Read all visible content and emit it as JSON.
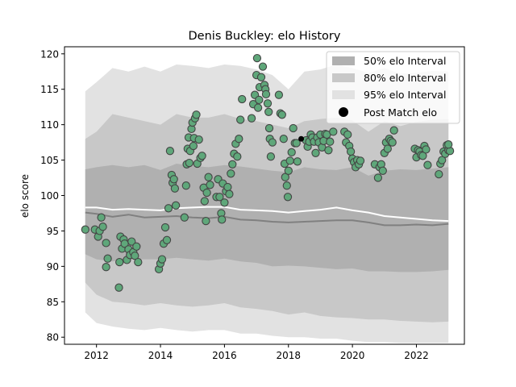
{
  "chart_data": {
    "type": "scatter",
    "title": "Denis Buckley: elo History",
    "xlabel": "",
    "ylabel": "elo score",
    "xlim": [
      2011.0,
      2023.5
    ],
    "ylim": [
      79.0,
      121.0
    ],
    "xticks": [
      2012,
      2014,
      2016,
      2018,
      2020,
      2022
    ],
    "yticks": [
      80,
      85,
      90,
      95,
      100,
      105,
      110,
      115,
      120
    ],
    "grid": false,
    "legend": {
      "placement": "top-right",
      "entries": [
        "50% elo Interval",
        "80% elo Interval",
        "95% elo Interval",
        "Post Match elo"
      ]
    },
    "colors": {
      "band50": "#b0b0b0",
      "band80": "#c8c8c8",
      "band95": "#e2e2e2",
      "points_fill": "#5fa77a",
      "points_edge": "#444444",
      "mean_line": "#808080",
      "median_line": "#ffffff",
      "highlight_point": "#000000"
    },
    "bands": {
      "x": [
        2011.65,
        2012.0,
        2012.5,
        2013.0,
        2013.5,
        2014.0,
        2014.5,
        2015.0,
        2015.5,
        2016.0,
        2016.5,
        2017.0,
        2017.5,
        2018.0,
        2018.5,
        2019.0,
        2019.5,
        2020.0,
        2020.5,
        2021.0,
        2021.5,
        2022.0,
        2022.5,
        2023.0
      ],
      "p95_upper": [
        114.7,
        116.0,
        118.0,
        117.5,
        118.2,
        117.5,
        118.5,
        118.3,
        118.0,
        118.5,
        118.3,
        117.8,
        117.0,
        115.0,
        117.5,
        117.8,
        118.5,
        118.0,
        117.3,
        118.0,
        117.2,
        117.3,
        117.6,
        117.5
      ],
      "p80_upper": [
        108.0,
        109.0,
        111.5,
        111.0,
        110.5,
        110.0,
        111.5,
        111.0,
        111.0,
        111.5,
        110.8,
        110.5,
        110.0,
        109.5,
        110.5,
        110.8,
        111.0,
        110.6,
        109.0,
        110.5,
        109.8,
        110.4,
        110.7,
        110.8
      ],
      "p50_upper": [
        103.7,
        104.0,
        104.3,
        104.0,
        104.3,
        103.6,
        104.5,
        104.2,
        104.0,
        104.3,
        104.1,
        103.8,
        103.5,
        103.3,
        104.0,
        103.7,
        103.6,
        104.0,
        102.8,
        103.5,
        103.7,
        103.6,
        103.8,
        104.0
      ],
      "p50_lower": [
        91.7,
        91.0,
        90.7,
        91.0,
        91.0,
        91.0,
        91.2,
        91.0,
        90.8,
        91.1,
        90.7,
        90.5,
        90.0,
        90.1,
        90.0,
        89.8,
        89.6,
        89.7,
        89.3,
        89.3,
        89.2,
        89.2,
        89.3,
        89.5
      ],
      "p80_lower": [
        87.7,
        86.0,
        85.0,
        84.8,
        84.5,
        84.8,
        84.5,
        84.3,
        84.5,
        84.8,
        84.2,
        84.0,
        83.7,
        83.2,
        83.5,
        83.0,
        82.8,
        82.7,
        82.5,
        82.5,
        82.3,
        82.2,
        82.1,
        82.2
      ],
      "p95_lower": [
        83.5,
        82.0,
        81.5,
        81.2,
        81.0,
        81.3,
        81.0,
        80.8,
        81.0,
        81.0,
        80.5,
        80.5,
        80.2,
        80.0,
        80.0,
        79.8,
        79.8,
        79.5,
        79.3,
        79.3,
        79.2,
        79.2,
        79.2,
        79.2
      ]
    },
    "lines": [
      {
        "x": [
          2011.65,
          2012.0,
          2012.5,
          2013.0,
          2013.5,
          2014.0,
          2014.5,
          2015.0,
          2015.5,
          2016.0,
          2016.5,
          2017.0,
          2017.5,
          2018.0,
          2018.5,
          2019.0,
          2019.5,
          2020.0,
          2020.5,
          2021.0,
          2021.5,
          2022.0,
          2022.5,
          2023.0
        ],
        "y": [
          97.6,
          97.4,
          97.0,
          97.3,
          96.9,
          97.0,
          97.1,
          96.9,
          96.8,
          97.0,
          96.6,
          96.5,
          96.3,
          96.2,
          96.3,
          96.4,
          96.5,
          96.5,
          96.2,
          95.8,
          95.8,
          95.9,
          95.8,
          96.0
        ]
      },
      {
        "x": [
          2011.65,
          2012.0,
          2012.5,
          2013.0,
          2013.5,
          2014.0,
          2014.5,
          2015.0,
          2015.5,
          2016.0,
          2016.5,
          2017.0,
          2017.5,
          2018.0,
          2018.5,
          2019.0,
          2019.5,
          2020.0,
          2020.5,
          2021.0,
          2021.5,
          2022.0,
          2022.5,
          2023.0
        ],
        "y": [
          98.3,
          98.3,
          98.0,
          98.1,
          98.0,
          97.9,
          98.2,
          98.3,
          98.4,
          98.4,
          98.0,
          97.9,
          97.8,
          97.6,
          97.8,
          98.0,
          98.3,
          97.9,
          97.6,
          97.1,
          96.9,
          96.7,
          96.5,
          96.4
        ]
      }
    ],
    "highlight_point": {
      "x": 2018.4,
      "y": 108.0
    },
    "series": [
      {
        "name": "Post Match elo",
        "points": [
          [
            2011.65,
            95.2
          ],
          [
            2011.95,
            95.2
          ],
          [
            2012.05,
            94.2
          ],
          [
            2012.1,
            95.0
          ],
          [
            2012.15,
            96.9
          ],
          [
            2012.2,
            95.6
          ],
          [
            2012.3,
            93.3
          ],
          [
            2012.3,
            89.9
          ],
          [
            2012.35,
            91.1
          ],
          [
            2012.7,
            87.0
          ],
          [
            2012.72,
            90.6
          ],
          [
            2012.75,
            94.2
          ],
          [
            2012.8,
            92.5
          ],
          [
            2012.85,
            93.8
          ],
          [
            2012.88,
            93.2
          ],
          [
            2012.95,
            90.9
          ],
          [
            2013.0,
            92.4
          ],
          [
            2013.05,
            91.6
          ],
          [
            2013.1,
            93.5
          ],
          [
            2013.15,
            92.0
          ],
          [
            2013.2,
            91.5
          ],
          [
            2013.25,
            92.8
          ],
          [
            2013.3,
            90.6
          ],
          [
            2013.95,
            89.6
          ],
          [
            2014.0,
            90.4
          ],
          [
            2014.05,
            91.0
          ],
          [
            2014.1,
            93.2
          ],
          [
            2014.15,
            95.5
          ],
          [
            2014.2,
            93.7
          ],
          [
            2014.25,
            98.2
          ],
          [
            2014.3,
            106.3
          ],
          [
            2014.35,
            102.9
          ],
          [
            2014.38,
            101.8
          ],
          [
            2014.42,
            102.3
          ],
          [
            2014.45,
            101.0
          ],
          [
            2014.48,
            98.6
          ],
          [
            2014.75,
            96.9
          ],
          [
            2014.8,
            101.4
          ],
          [
            2014.82,
            104.4
          ],
          [
            2014.85,
            106.6
          ],
          [
            2014.88,
            108.2
          ],
          [
            2014.9,
            104.6
          ],
          [
            2014.93,
            106.3
          ],
          [
            2014.97,
            109.4
          ],
          [
            2015.0,
            110.3
          ],
          [
            2015.03,
            107.0
          ],
          [
            2015.05,
            108.1
          ],
          [
            2015.08,
            110.9
          ],
          [
            2015.12,
            111.4
          ],
          [
            2015.15,
            104.5
          ],
          [
            2015.2,
            107.9
          ],
          [
            2015.25,
            105.3
          ],
          [
            2015.3,
            105.6
          ],
          [
            2015.35,
            101.1
          ],
          [
            2015.38,
            99.2
          ],
          [
            2015.42,
            96.4
          ],
          [
            2015.45,
            100.4
          ],
          [
            2015.5,
            102.6
          ],
          [
            2015.55,
            101.5
          ],
          [
            2015.75,
            99.8
          ],
          [
            2015.8,
            102.3
          ],
          [
            2015.85,
            99.8
          ],
          [
            2015.9,
            97.5
          ],
          [
            2015.92,
            96.6
          ],
          [
            2015.95,
            101.7
          ],
          [
            2016.0,
            99.0
          ],
          [
            2016.05,
            100.6
          ],
          [
            2016.1,
            101.2
          ],
          [
            2016.15,
            100.2
          ],
          [
            2016.2,
            103.1
          ],
          [
            2016.25,
            104.4
          ],
          [
            2016.3,
            105.9
          ],
          [
            2016.35,
            107.3
          ],
          [
            2016.4,
            105.5
          ],
          [
            2016.45,
            108.0
          ],
          [
            2016.5,
            110.7
          ],
          [
            2016.55,
            113.6
          ],
          [
            2016.85,
            110.9
          ],
          [
            2016.9,
            112.9
          ],
          [
            2016.95,
            114.2
          ],
          [
            2017.0,
            117.0
          ],
          [
            2017.02,
            119.4
          ],
          [
            2017.05,
            112.4
          ],
          [
            2017.08,
            113.5
          ],
          [
            2017.1,
            115.3
          ],
          [
            2017.15,
            116.7
          ],
          [
            2017.2,
            118.2
          ],
          [
            2017.25,
            115.6
          ],
          [
            2017.28,
            115.0
          ],
          [
            2017.3,
            114.3
          ],
          [
            2017.35,
            113.0
          ],
          [
            2017.38,
            111.8
          ],
          [
            2017.4,
            109.5
          ],
          [
            2017.42,
            108.0
          ],
          [
            2017.45,
            105.5
          ],
          [
            2017.5,
            107.5
          ],
          [
            2017.7,
            114.2
          ],
          [
            2017.75,
            111.6
          ],
          [
            2017.8,
            111.4
          ],
          [
            2017.85,
            108.0
          ],
          [
            2017.88,
            104.5
          ],
          [
            2017.9,
            102.6
          ],
          [
            2017.95,
            101.4
          ],
          [
            2017.98,
            99.8
          ],
          [
            2018.0,
            103.5
          ],
          [
            2018.05,
            104.9
          ],
          [
            2018.1,
            106.1
          ],
          [
            2018.15,
            109.5
          ],
          [
            2018.2,
            107.4
          ],
          [
            2018.25,
            107.4
          ],
          [
            2018.28,
            104.8
          ],
          [
            2018.55,
            107.8
          ],
          [
            2018.6,
            106.9
          ],
          [
            2018.65,
            107.6
          ],
          [
            2018.7,
            108.6
          ],
          [
            2018.75,
            108.2
          ],
          [
            2018.8,
            107.6
          ],
          [
            2018.85,
            106.0
          ],
          [
            2018.9,
            108.2
          ],
          [
            2018.95,
            107.5
          ],
          [
            2019.0,
            108.6
          ],
          [
            2019.05,
            106.8
          ],
          [
            2019.1,
            107.7
          ],
          [
            2019.15,
            108.7
          ],
          [
            2019.2,
            108.6
          ],
          [
            2019.25,
            106.4
          ],
          [
            2019.3,
            107.6
          ],
          [
            2019.4,
            109.0
          ],
          [
            2019.75,
            109.0
          ],
          [
            2019.8,
            107.5
          ],
          [
            2019.85,
            108.6
          ],
          [
            2019.9,
            107.0
          ],
          [
            2019.95,
            106.2
          ],
          [
            2020.0,
            105.2
          ],
          [
            2020.05,
            104.7
          ],
          [
            2020.1,
            104.0
          ],
          [
            2020.15,
            105.0
          ],
          [
            2020.2,
            104.4
          ],
          [
            2020.25,
            104.9
          ],
          [
            2020.7,
            104.4
          ],
          [
            2020.8,
            102.5
          ],
          [
            2020.85,
            104.0
          ],
          [
            2020.9,
            104.4
          ],
          [
            2020.95,
            103.5
          ],
          [
            2021.0,
            106.0
          ],
          [
            2021.05,
            107.5
          ],
          [
            2021.1,
            106.6
          ],
          [
            2021.15,
            108.0
          ],
          [
            2021.2,
            107.7
          ],
          [
            2021.25,
            107.5
          ],
          [
            2021.3,
            109.2
          ],
          [
            2021.95,
            106.6
          ],
          [
            2022.0,
            105.4
          ],
          [
            2022.05,
            106.4
          ],
          [
            2022.1,
            106.2
          ],
          [
            2022.15,
            105.7
          ],
          [
            2022.2,
            105.6
          ],
          [
            2022.25,
            107.0
          ],
          [
            2022.3,
            106.5
          ],
          [
            2022.35,
            104.3
          ],
          [
            2022.7,
            103.0
          ],
          [
            2022.75,
            104.5
          ],
          [
            2022.8,
            105.0
          ],
          [
            2022.85,
            106.2
          ],
          [
            2022.9,
            105.9
          ],
          [
            2022.95,
            107.1
          ],
          [
            2023.0,
            106.4
          ],
          [
            2023.05,
            106.3
          ],
          [
            2023.0,
            107.2
          ]
        ]
      }
    ]
  }
}
